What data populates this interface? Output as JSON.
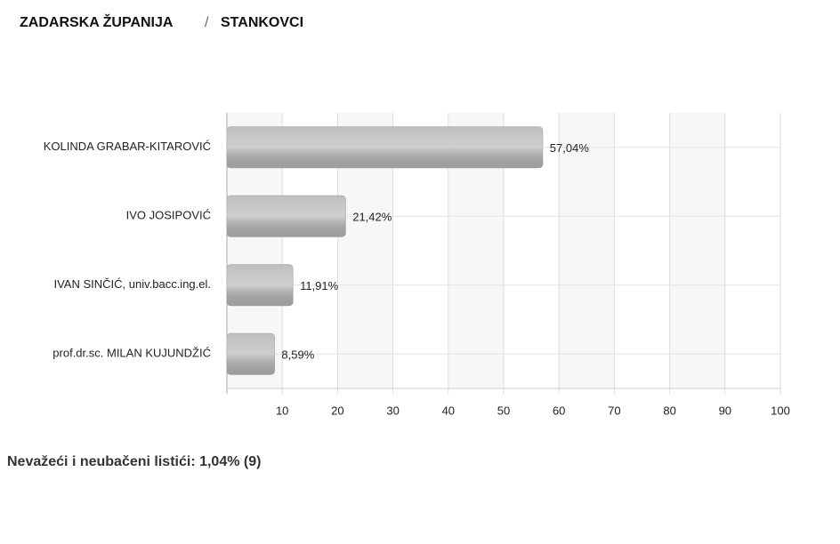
{
  "header": {
    "region": "ZADARSKA ŽUPANIJA",
    "separator": "/",
    "municipality": "STANKOVCI"
  },
  "chart_data": {
    "type": "bar",
    "horizontal": true,
    "categories": [
      "KOLINDA GRABAR-KITAROVIĆ",
      "IVO JOSIPOVIĆ",
      "IVAN SINČIĆ, univ.bacc.ing.el.",
      "prof.dr.sc. MILAN KUJUNDŽIĆ"
    ],
    "values": [
      57.04,
      21.42,
      11.91,
      8.59
    ],
    "value_labels": [
      "57,04%",
      "21,42%",
      "11,91%",
      "8,59%"
    ],
    "color": "#b5b5b5",
    "xlim": [
      0,
      100
    ],
    "xticks": [
      10,
      20,
      30,
      40,
      50,
      60,
      70,
      80,
      90,
      100
    ],
    "grid": true
  },
  "footer": {
    "text": "Nevažeći i neubačeni listići: 1,04% (9)"
  }
}
